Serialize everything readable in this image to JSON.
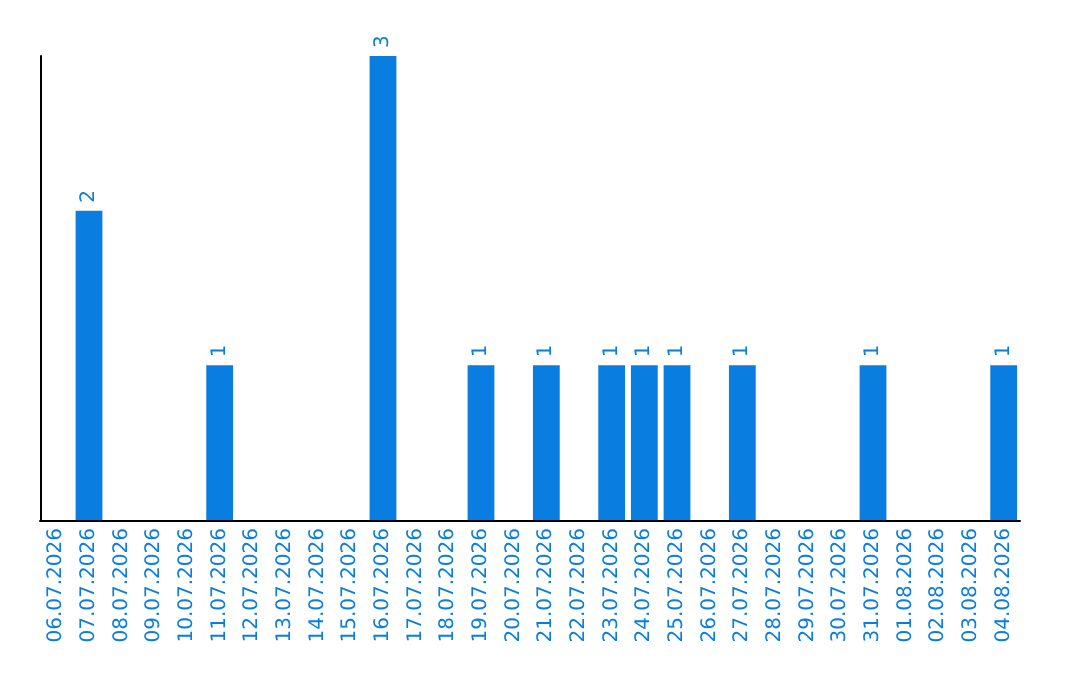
{
  "chart_data": {
    "type": "bar",
    "categories": [
      "06.07.2026",
      "07.07.2026",
      "08.07.2026",
      "09.07.2026",
      "10.07.2026",
      "11.07.2026",
      "12.07.2026",
      "13.07.2026",
      "14.07.2026",
      "15.07.2026",
      "16.07.2026",
      "17.07.2026",
      "18.07.2026",
      "19.07.2026",
      "20.07.2026",
      "21.07.2026",
      "22.07.2026",
      "23.07.2026",
      "24.07.2026",
      "25.07.2026",
      "26.07.2026",
      "27.07.2026",
      "28.07.2026",
      "29.07.2026",
      "30.07.2026",
      "31.07.2026",
      "01.08.2026",
      "02.08.2026",
      "03.08.2026",
      "04.08.2026"
    ],
    "values": [
      0,
      2,
      0,
      0,
      0,
      1,
      0,
      0,
      0,
      0,
      3,
      0,
      0,
      1,
      0,
      1,
      0,
      1,
      1,
      1,
      0,
      1,
      0,
      0,
      0,
      1,
      0,
      0,
      0,
      1
    ],
    "value_labels": [
      null,
      "2",
      null,
      null,
      null,
      "1",
      null,
      null,
      null,
      null,
      "3",
      null,
      null,
      "1",
      null,
      "1",
      null,
      "1",
      "1",
      "1",
      null,
      "1",
      null,
      null,
      null,
      "1",
      null,
      null,
      null,
      "1"
    ],
    "color": "#0a7ee0",
    "grid": false,
    "tick_labels": "x"
  }
}
